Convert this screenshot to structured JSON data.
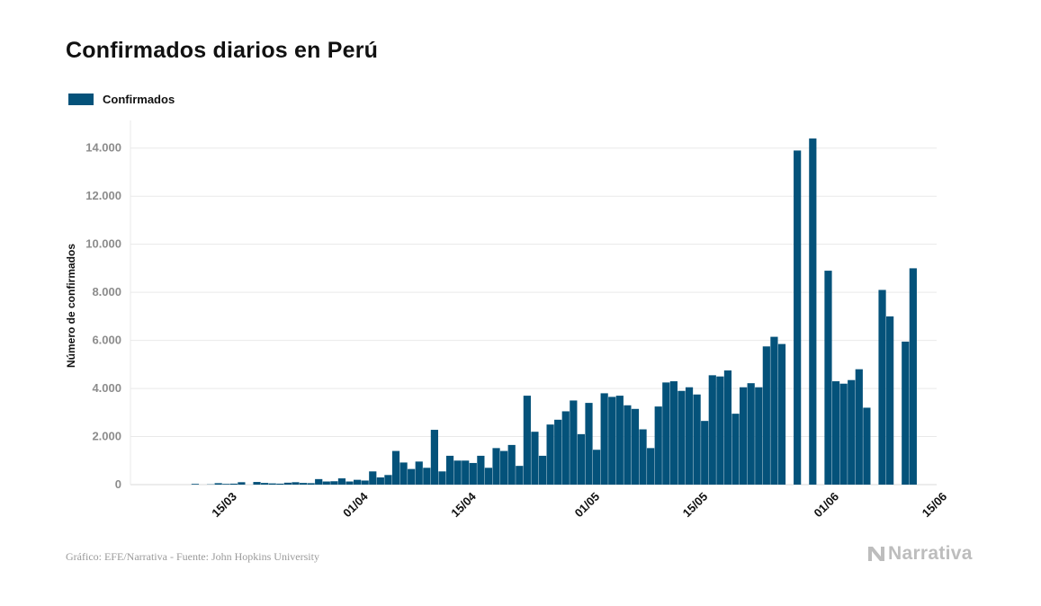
{
  "colors": {
    "bar": "#04527a",
    "grid": "#e9e9e9",
    "axis": "#d9d9d9"
  },
  "chart_data": {
    "type": "bar",
    "title": "Confirmados diarios en Perú",
    "ylabel": "Número de confirmados",
    "xlabel": "",
    "ylim": [
      0,
      15000
    ],
    "yticks": [
      0,
      2000,
      4000,
      6000,
      8000,
      10000,
      12000,
      14000
    ],
    "ytick_labels": [
      "0",
      "2.000",
      "4.000",
      "6.000",
      "8.000",
      "10.000",
      "12.000",
      "14.000"
    ],
    "x_tick_labels": [
      {
        "index": 9,
        "label": "15/03"
      },
      {
        "index": 26,
        "label": "01/04"
      },
      {
        "index": 40,
        "label": "15/04"
      },
      {
        "index": 56,
        "label": "01/05"
      },
      {
        "index": 70,
        "label": "15/05"
      },
      {
        "index": 87,
        "label": "01/06"
      },
      {
        "index": 101,
        "label": "15/06"
      }
    ],
    "legend": {
      "label": "Confirmados",
      "position": "top-left"
    },
    "series": [
      {
        "name": "Confirmados",
        "values": [
          0,
          0,
          0,
          0,
          30,
          0,
          10,
          60,
          30,
          40,
          100,
          0,
          110,
          70,
          50,
          40,
          80,
          100,
          70,
          60,
          230,
          130,
          140,
          260,
          130,
          200,
          170,
          550,
          300,
          400,
          1400,
          920,
          650,
          960,
          700,
          2280,
          550,
          1200,
          1000,
          1000,
          900,
          1200,
          700,
          1520,
          1400,
          1650,
          780,
          3700,
          2200,
          1200,
          2500,
          2700,
          3050,
          3500,
          2100,
          3400,
          1450,
          3800,
          3650,
          3700,
          3300,
          3150,
          2300,
          1520,
          3250,
          4250,
          4300,
          3900,
          4050,
          3750,
          2650,
          4550,
          4500,
          4750,
          2950,
          4050,
          4220,
          4050,
          5750,
          6150,
          5850,
          0,
          13900,
          0,
          14400,
          0,
          8900,
          4300,
          4200,
          4350,
          4800,
          3200,
          0,
          8100,
          7000,
          0,
          5950,
          9000,
          0,
          0,
          0,
          0
        ]
      }
    ]
  },
  "footer": {
    "source": "Gráfico: EFE/Narrativa - Fuente: John Hopkins University",
    "brand": "Narrativa"
  }
}
